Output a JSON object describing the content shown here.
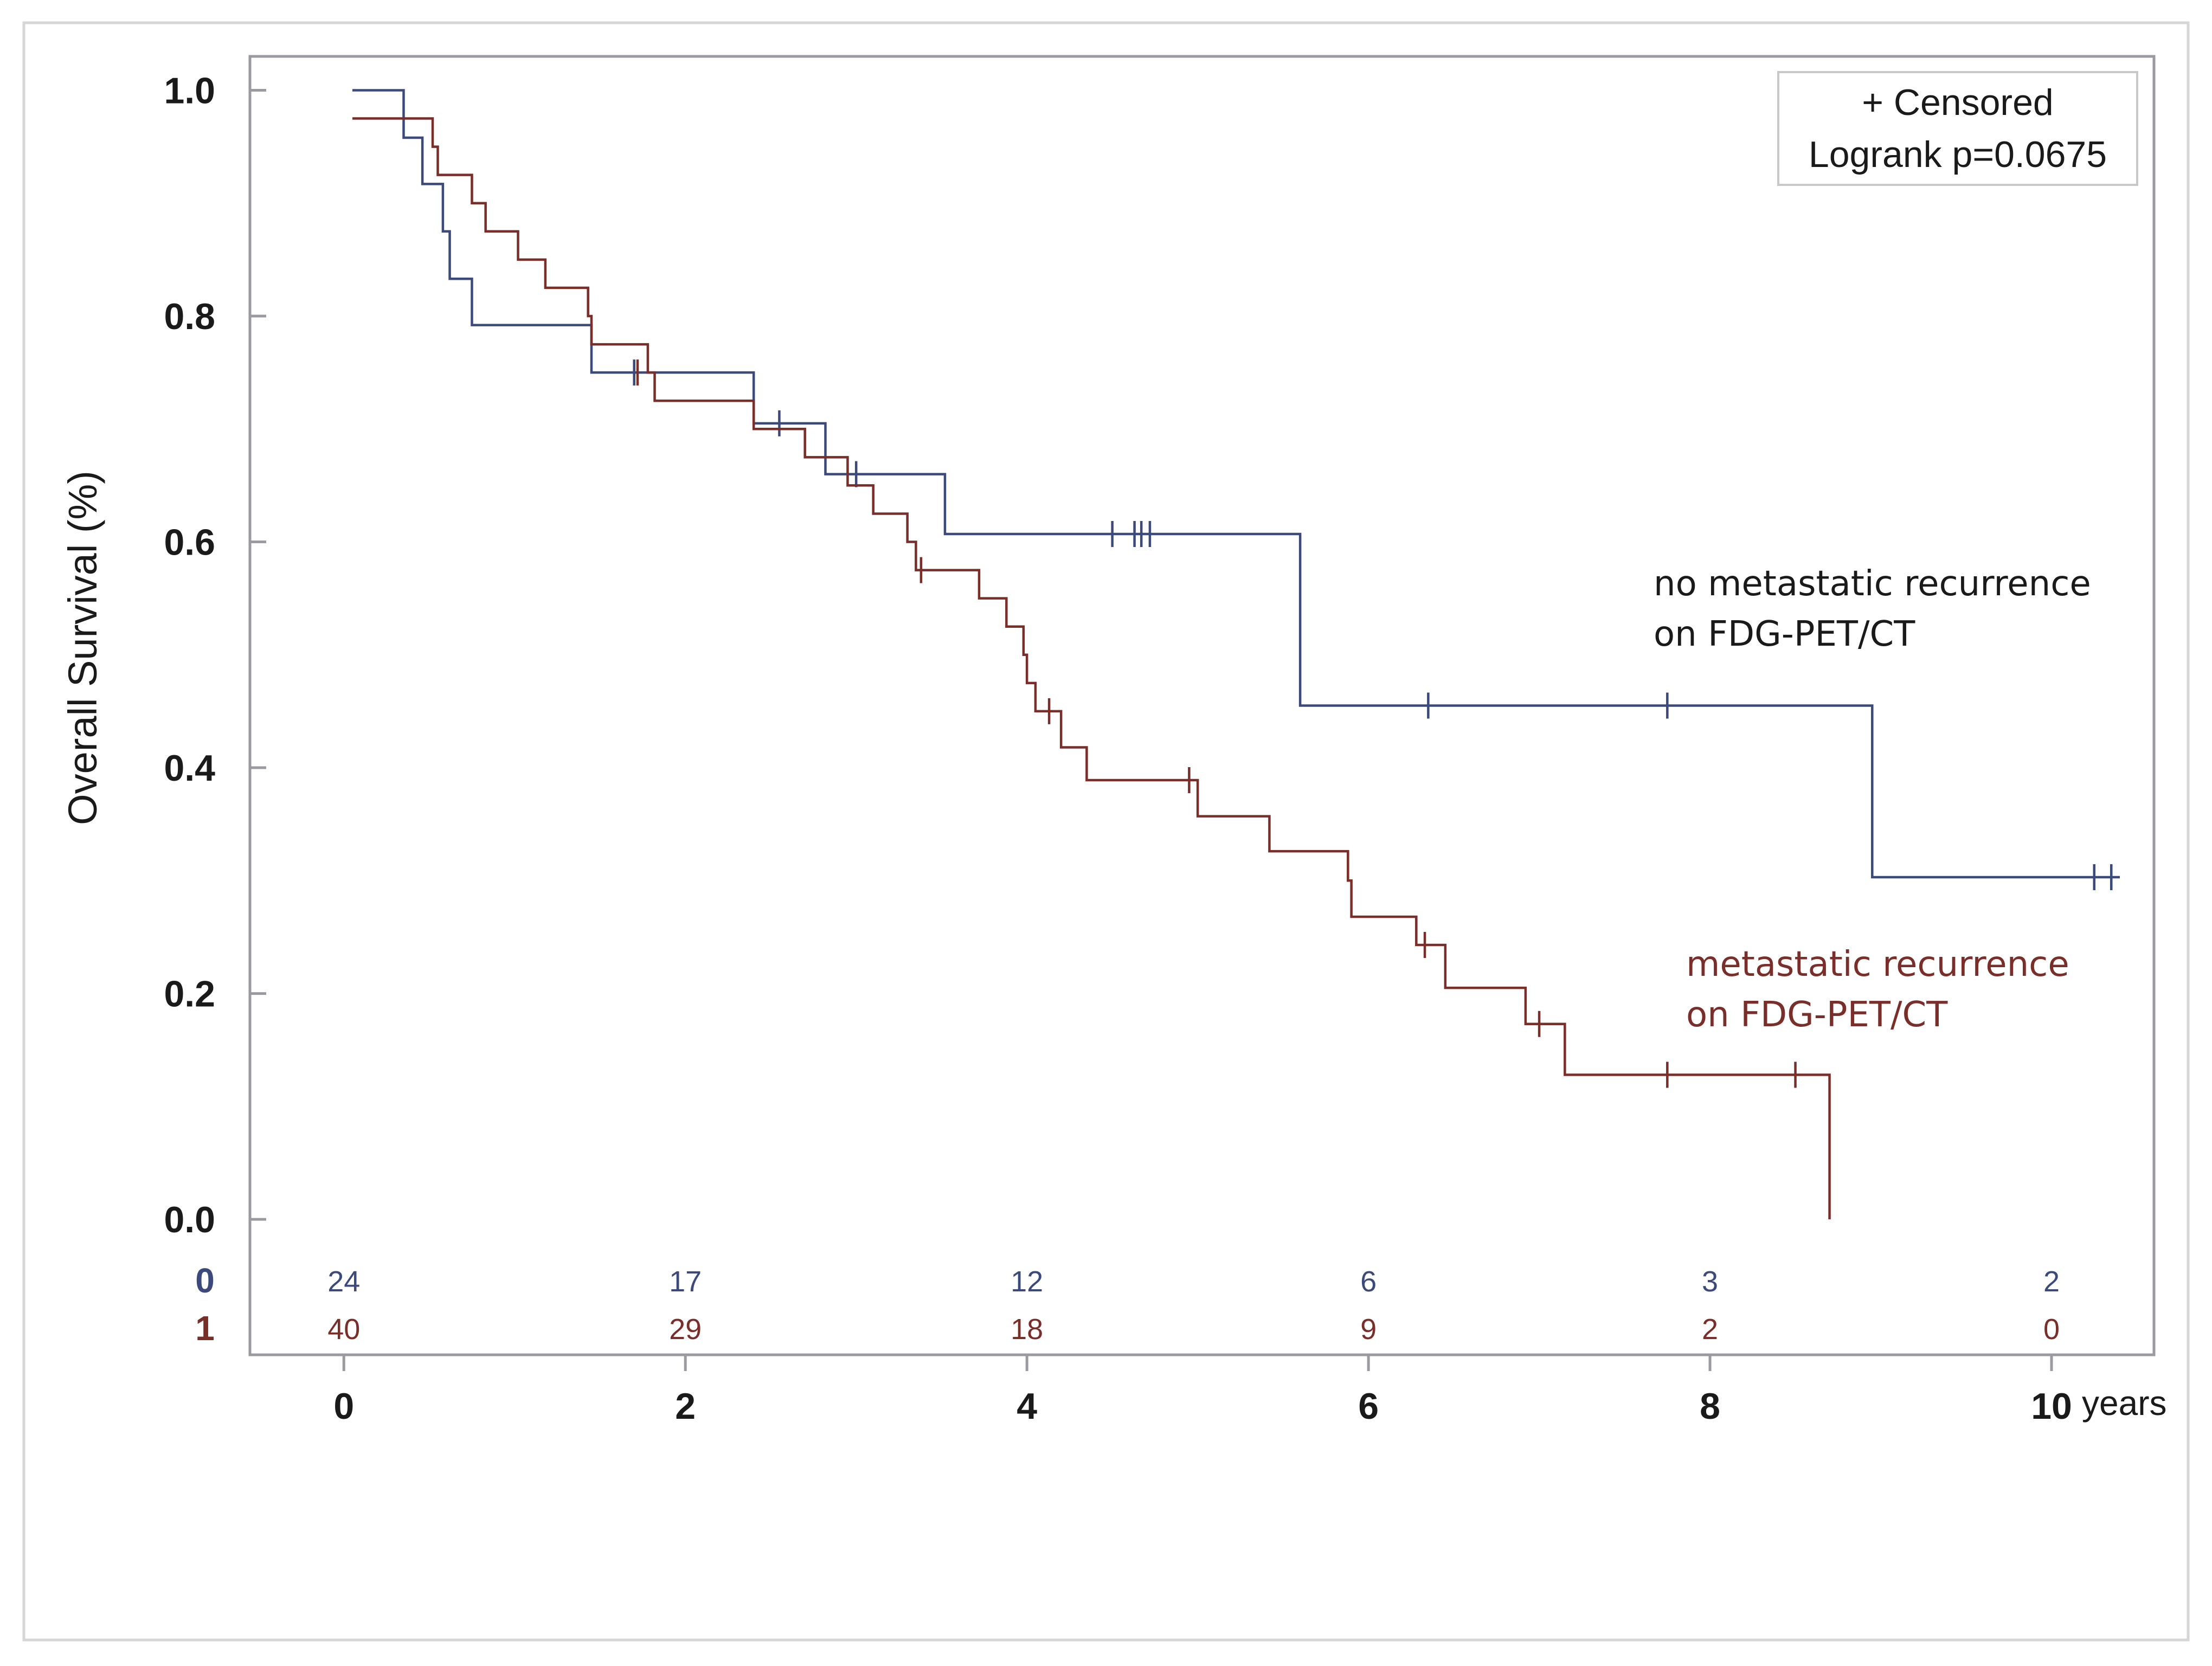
{
  "chart_data": {
    "type": "line",
    "subtype": "kaplan-meier step",
    "title": "",
    "xlabel": "years",
    "ylabel": "Overall Survival (%)",
    "xlim": [
      -0.55,
      10.6
    ],
    "ylim": [
      -0.12,
      1.03
    ],
    "x_ticks": [
      0,
      2,
      4,
      6,
      8,
      10
    ],
    "x_tick_labels": [
      "0",
      "2",
      "4",
      "6",
      "8",
      "10"
    ],
    "y_ticks": [
      0.0,
      0.2,
      0.4,
      0.6,
      0.8,
      1.0
    ],
    "y_tick_labels": [
      "0.0",
      "0.2",
      "0.4",
      "0.6",
      "0.8",
      "1.0"
    ],
    "grid": false,
    "legend": {
      "placement": "top-right",
      "lines": [
        "+ Censored",
        "Logrank p=0.0675"
      ]
    },
    "annotations": [
      {
        "series": "0",
        "lines": [
          "no metastatic recurrence",
          "on FDG-PET/CT"
        ]
      },
      {
        "series": "1",
        "lines": [
          "metastatic recurrence",
          "on FDG-PET/CT"
        ]
      }
    ],
    "series": [
      {
        "name": "0",
        "color": "#3b4a7a",
        "steps": [
          [
            0.05,
            1.0
          ],
          [
            0.35,
            0.958
          ],
          [
            0.46,
            0.917
          ],
          [
            0.58,
            0.875
          ],
          [
            0.62,
            0.833
          ],
          [
            0.75,
            0.792
          ],
          [
            1.45,
            0.75
          ],
          [
            2.4,
            0.705
          ],
          [
            2.82,
            0.66
          ],
          [
            3.52,
            0.607
          ],
          [
            5.6,
            0.455
          ],
          [
            8.95,
            0.303
          ],
          [
            10.4,
            0.303
          ]
        ],
        "censored": [
          [
            1.7,
            0.75
          ],
          [
            2.55,
            0.705
          ],
          [
            3.0,
            0.66
          ],
          [
            4.5,
            0.607
          ],
          [
            4.63,
            0.607
          ],
          [
            4.67,
            0.607
          ],
          [
            4.72,
            0.607
          ],
          [
            6.35,
            0.455
          ],
          [
            7.75,
            0.455
          ],
          [
            10.25,
            0.303
          ],
          [
            10.35,
            0.303
          ]
        ],
        "at_risk": [
          "24",
          "17",
          "12",
          "6",
          "3",
          "2"
        ]
      },
      {
        "name": "1",
        "color": "#7a2e2a",
        "steps": [
          [
            0.05,
            0.975
          ],
          [
            0.52,
            0.95
          ],
          [
            0.55,
            0.925
          ],
          [
            0.75,
            0.9
          ],
          [
            0.83,
            0.875
          ],
          [
            1.02,
            0.85
          ],
          [
            1.18,
            0.825
          ],
          [
            1.43,
            0.8
          ],
          [
            1.45,
            0.775
          ],
          [
            1.78,
            0.75
          ],
          [
            1.82,
            0.725
          ],
          [
            2.4,
            0.7
          ],
          [
            2.7,
            0.675
          ],
          [
            2.95,
            0.65
          ],
          [
            3.1,
            0.625
          ],
          [
            3.3,
            0.6
          ],
          [
            3.35,
            0.575
          ],
          [
            3.72,
            0.55
          ],
          [
            3.88,
            0.525
          ],
          [
            3.98,
            0.5
          ],
          [
            4.0,
            0.475
          ],
          [
            4.05,
            0.45
          ],
          [
            4.2,
            0.418
          ],
          [
            4.35,
            0.389
          ],
          [
            5.0,
            0.357
          ],
          [
            5.42,
            0.326
          ],
          [
            5.88,
            0.3
          ],
          [
            5.9,
            0.268
          ],
          [
            6.28,
            0.243
          ],
          [
            6.45,
            0.205
          ],
          [
            6.92,
            0.173
          ],
          [
            7.15,
            0.128
          ],
          [
            8.7,
            0.0
          ]
        ],
        "censored": [
          [
            1.72,
            0.75
          ],
          [
            3.38,
            0.575
          ],
          [
            4.13,
            0.45
          ],
          [
            4.95,
            0.389
          ],
          [
            6.33,
            0.243
          ],
          [
            7.0,
            0.173
          ],
          [
            7.75,
            0.128
          ],
          [
            8.5,
            0.128
          ]
        ],
        "at_risk": [
          "40",
          "29",
          "18",
          "9",
          "2",
          "0"
        ]
      }
    ]
  }
}
